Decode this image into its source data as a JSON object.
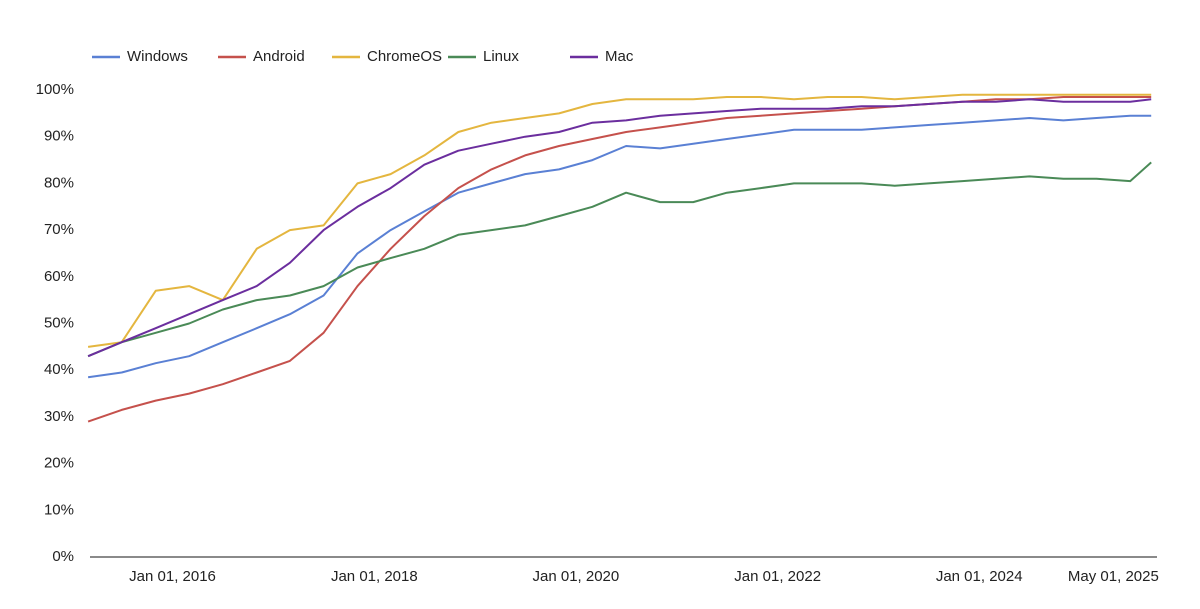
{
  "chart_data": {
    "type": "line",
    "x": [
      "2015-03-01",
      "2015-07-01",
      "2015-11-01",
      "2016-03-01",
      "2016-07-01",
      "2016-11-01",
      "2017-03-01",
      "2017-07-01",
      "2017-11-01",
      "2018-03-01",
      "2018-07-01",
      "2018-11-01",
      "2019-03-01",
      "2019-07-01",
      "2019-11-01",
      "2020-03-01",
      "2020-07-01",
      "2020-11-01",
      "2021-03-01",
      "2021-07-01",
      "2021-11-01",
      "2022-03-01",
      "2022-07-01",
      "2022-11-01",
      "2023-03-01",
      "2023-07-01",
      "2023-11-01",
      "2024-03-01",
      "2024-07-01",
      "2024-11-01",
      "2025-03-01",
      "2025-07-01",
      "2025-09-15"
    ],
    "series": [
      {
        "name": "Windows",
        "color": "#5a80d4",
        "values": [
          38.5,
          39.5,
          41.5,
          43,
          46,
          49,
          52,
          56,
          65,
          70,
          74,
          78,
          80,
          82,
          83,
          85,
          88,
          87.5,
          88.5,
          89.5,
          90.5,
          91.5,
          91.5,
          91.5,
          92,
          92.5,
          93,
          93.5,
          94,
          93.5,
          94,
          94.5,
          94.5
        ]
      },
      {
        "name": "Android",
        "color": "#c5514c",
        "values": [
          29,
          31.5,
          33.5,
          35,
          37,
          39.5,
          42,
          48,
          58,
          66,
          73,
          79,
          83,
          86,
          88,
          89.5,
          91,
          92,
          93,
          94,
          94.5,
          95,
          95.5,
          96,
          96.5,
          97,
          97.5,
          98,
          98,
          98.5,
          98.5,
          98.5,
          98.5
        ]
      },
      {
        "name": "ChromeOS",
        "color": "#e4b63f",
        "values": [
          45,
          46,
          57,
          58,
          55,
          66,
          70,
          71,
          80,
          82,
          86,
          91,
          93,
          94,
          95,
          97,
          98,
          98,
          98,
          98.5,
          98.5,
          98,
          98.5,
          98.5,
          98,
          98.5,
          99,
          99,
          99,
          99,
          99,
          99,
          99
        ]
      },
      {
        "name": "Linux",
        "color": "#4a8a57",
        "values": [
          43,
          46,
          48,
          50,
          53,
          55,
          56,
          58,
          62,
          64,
          66,
          69,
          70,
          71,
          73,
          75,
          78,
          76,
          76,
          78,
          79,
          80,
          80,
          80,
          79.5,
          80,
          80.5,
          81,
          81.5,
          81,
          81,
          80.5,
          84.5
        ]
      },
      {
        "name": "Mac",
        "color": "#6b2e9e",
        "values": [
          43,
          46,
          49,
          52,
          55,
          58,
          63,
          70,
          75,
          79,
          84,
          87,
          88.5,
          90,
          91,
          93,
          93.5,
          94.5,
          95,
          95.5,
          96,
          96,
          96,
          96.5,
          96.5,
          97,
          97.5,
          97.5,
          98,
          97.5,
          97.5,
          97.5,
          98
        ]
      }
    ],
    "xlim": [
      "2015-03-08",
      "2025-10-06"
    ],
    "xticks": [
      {
        "value": "2016-01-01",
        "label": "Jan 01, 2016"
      },
      {
        "value": "2018-01-01",
        "label": "Jan 01, 2018"
      },
      {
        "value": "2020-01-01",
        "label": "Jan 01, 2020"
      },
      {
        "value": "2022-01-01",
        "label": "Jan 01, 2022"
      },
      {
        "value": "2024-01-01",
        "label": "Jan 01, 2024"
      },
      {
        "value": "2025-05-01",
        "label": "May 01, 2025"
      }
    ],
    "ylim": [
      0,
      100
    ],
    "yticks": [
      {
        "value": 0,
        "label": "0%"
      },
      {
        "value": 10,
        "label": "10%"
      },
      {
        "value": 20,
        "label": "20%"
      },
      {
        "value": 30,
        "label": "30%"
      },
      {
        "value": 40,
        "label": "40%"
      },
      {
        "value": 50,
        "label": "50%"
      },
      {
        "value": 60,
        "label": "60%"
      },
      {
        "value": 70,
        "label": "70%"
      },
      {
        "value": 80,
        "label": "80%"
      },
      {
        "value": 90,
        "label": "90%"
      },
      {
        "value": 100,
        "label": "100%"
      }
    ],
    "legend": "top-left"
  }
}
